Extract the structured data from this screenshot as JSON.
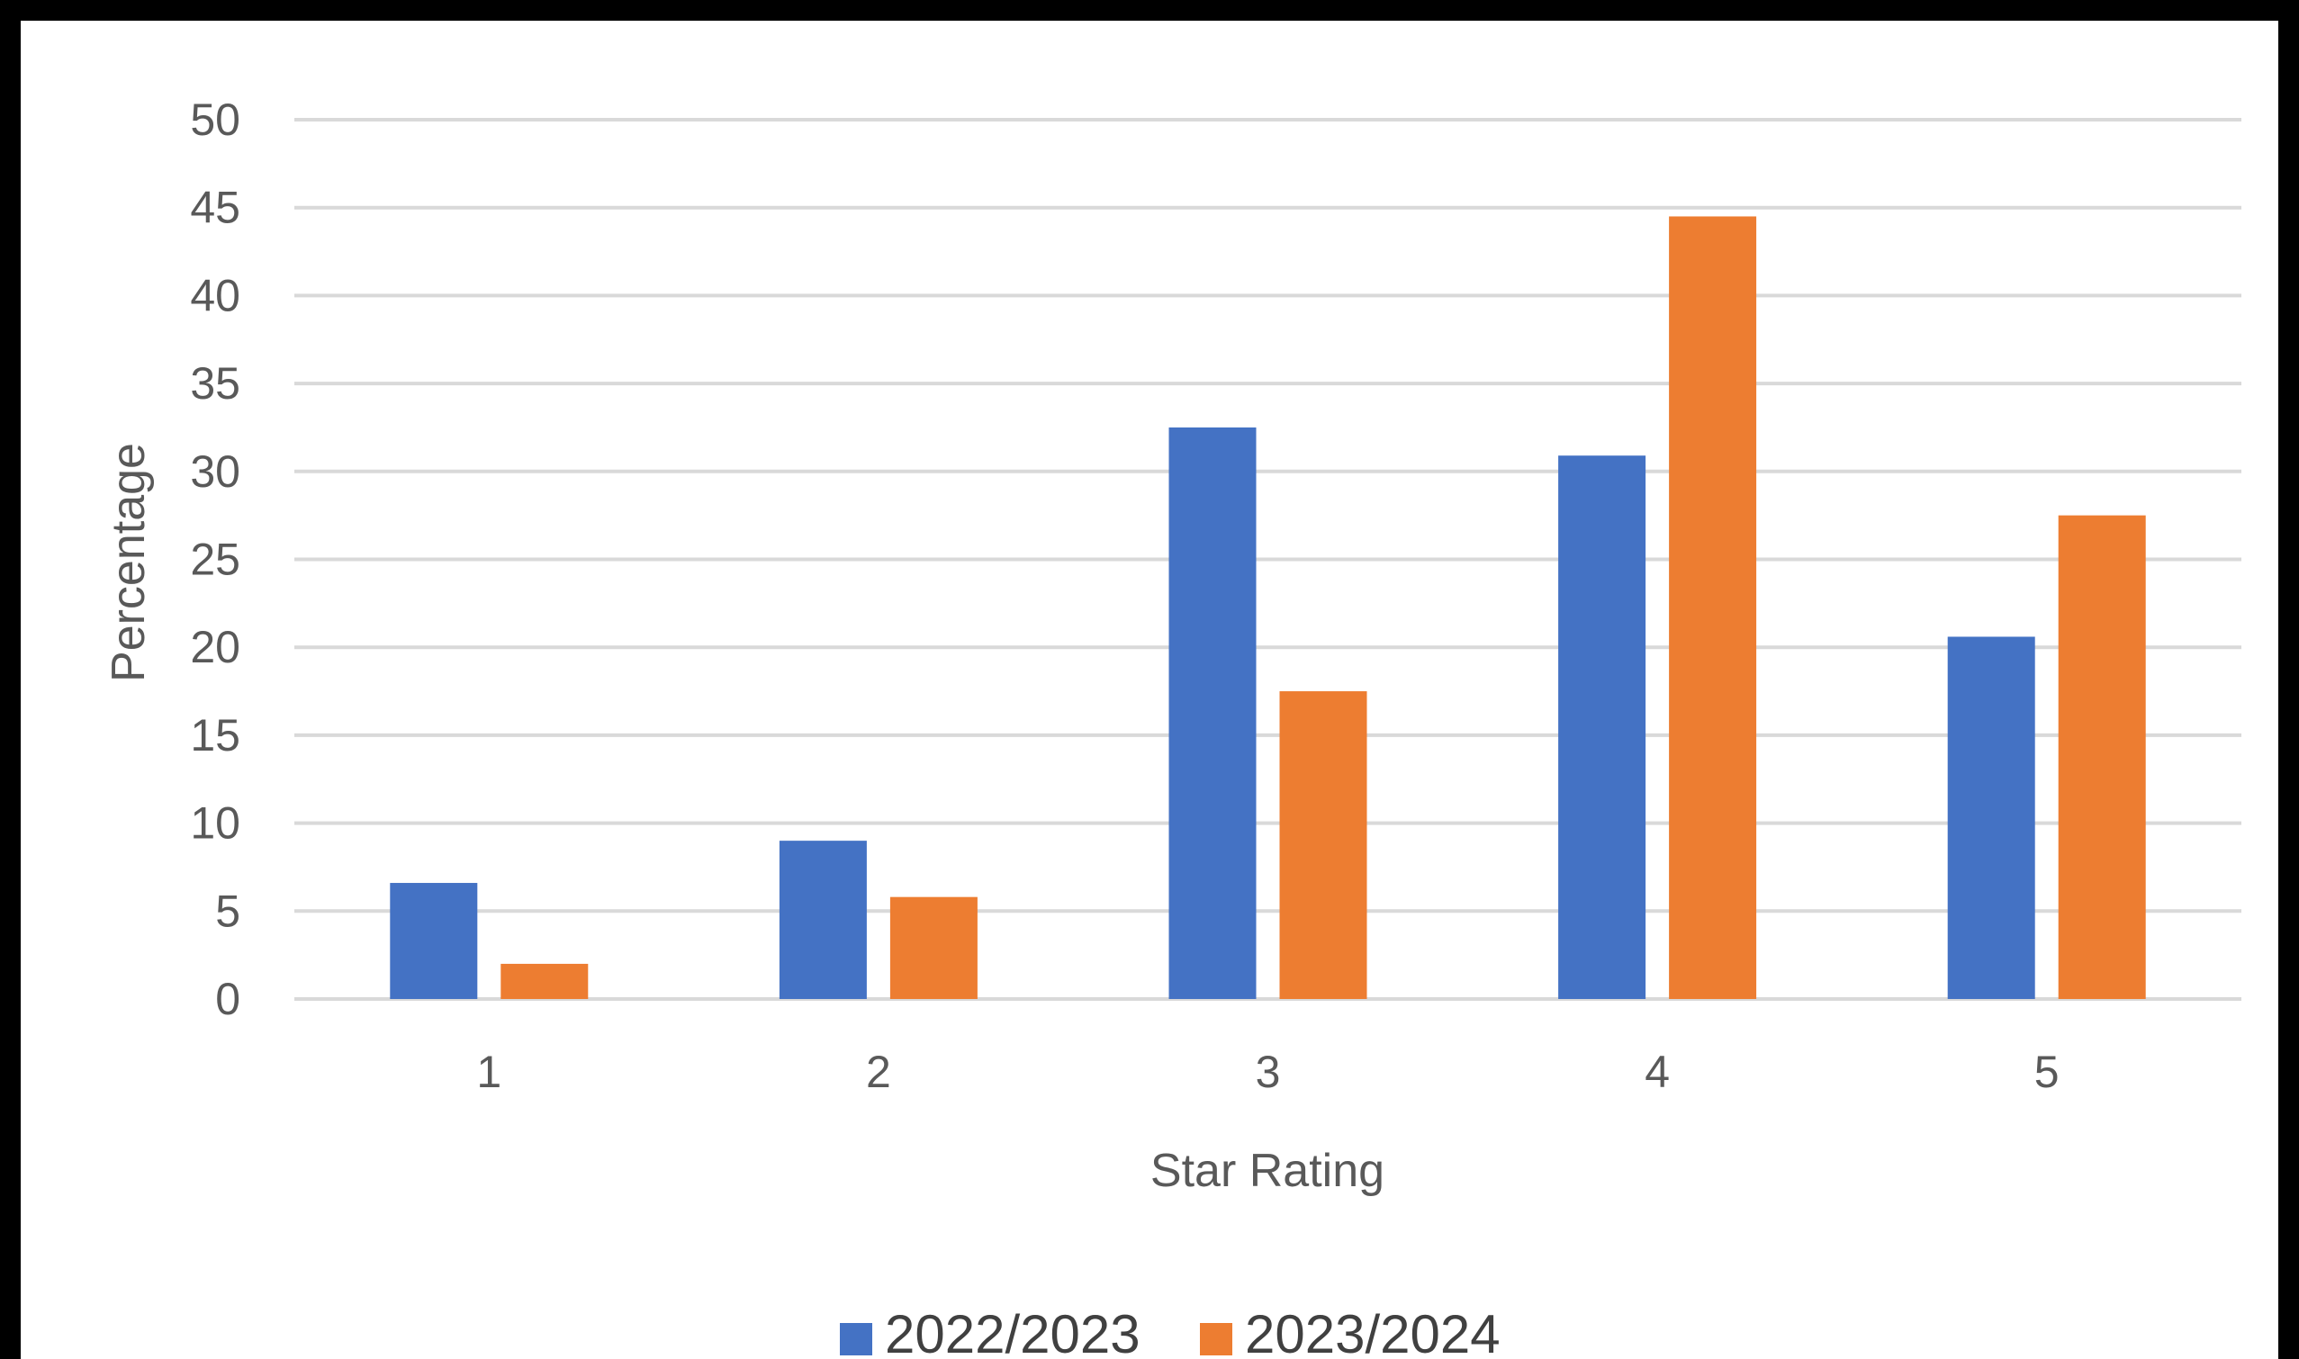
{
  "chart_data": {
    "type": "bar",
    "title": "",
    "xlabel": "Star Rating",
    "ylabel": "Percentage",
    "categories": [
      "1",
      "2",
      "3",
      "4",
      "5"
    ],
    "series": [
      {
        "name": "2022/2023",
        "color": "#4472C4",
        "values": [
          6.6,
          9.0,
          32.5,
          30.9,
          20.6
        ]
      },
      {
        "name": "2023/2024",
        "color": "#ED7D31",
        "values": [
          2.0,
          5.8,
          17.5,
          44.5,
          27.5
        ]
      }
    ],
    "ylim": [
      0,
      50
    ],
    "yticks": [
      "0",
      "5",
      "10",
      "15",
      "20",
      "25",
      "30",
      "35",
      "40",
      "45",
      "50"
    ],
    "grid": true,
    "legend": "bottom"
  }
}
